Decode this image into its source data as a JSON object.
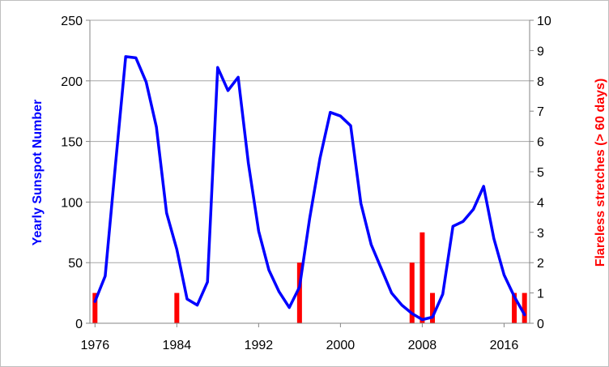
{
  "chart_data": {
    "type": "line+bar",
    "x_axis": {
      "tick_labels": [
        "1976",
        "1984",
        "1992",
        "2000",
        "2008",
        "2016"
      ],
      "range": [
        1975.5,
        2018.5
      ]
    },
    "y_left": {
      "label": "Yearly Sunspot Number",
      "range": [
        0,
        250
      ],
      "ticks": [
        "0",
        "50",
        "100",
        "150",
        "200",
        "250"
      ]
    },
    "y_right": {
      "label": "Flareless stretches (> 60 days)",
      "range": [
        0,
        10
      ],
      "ticks": [
        "0",
        "1",
        "2",
        "3",
        "4",
        "5",
        "6",
        "7",
        "8",
        "9",
        "10"
      ]
    },
    "grid": "horizontal",
    "series": [
      {
        "type": "line",
        "axis": "left",
        "color": "#0000ff",
        "x": [
          1976,
          1977,
          1978,
          1979,
          1980,
          1981,
          1982,
          1983,
          1984,
          1985,
          1986,
          1987,
          1988,
          1989,
          1990,
          1991,
          1992,
          1993,
          1994,
          1995,
          1996,
          1997,
          1998,
          1999,
          2000,
          2001,
          2002,
          2003,
          2004,
          2005,
          2006,
          2007,
          2008,
          2009,
          2010,
          2011,
          2012,
          2013,
          2014,
          2015,
          2016,
          2017,
          2018
        ],
        "values": [
          18,
          39,
          131,
          220,
          219,
          199,
          162,
          91,
          61,
          20,
          15,
          34,
          211,
          192,
          203,
          132,
          76,
          44,
          26,
          13,
          30,
          87,
          136,
          174,
          171,
          163,
          99,
          65,
          45,
          25,
          15,
          8,
          3,
          5,
          24,
          80,
          84,
          94,
          113,
          70,
          40,
          22,
          7
        ]
      },
      {
        "type": "bar",
        "axis": "right",
        "color": "#ff0000",
        "x": [
          1976,
          1984,
          1996,
          2007,
          2008,
          2009,
          2017,
          2018
        ],
        "values": [
          1,
          1,
          2,
          2,
          3,
          1,
          1,
          1
        ]
      }
    ]
  }
}
